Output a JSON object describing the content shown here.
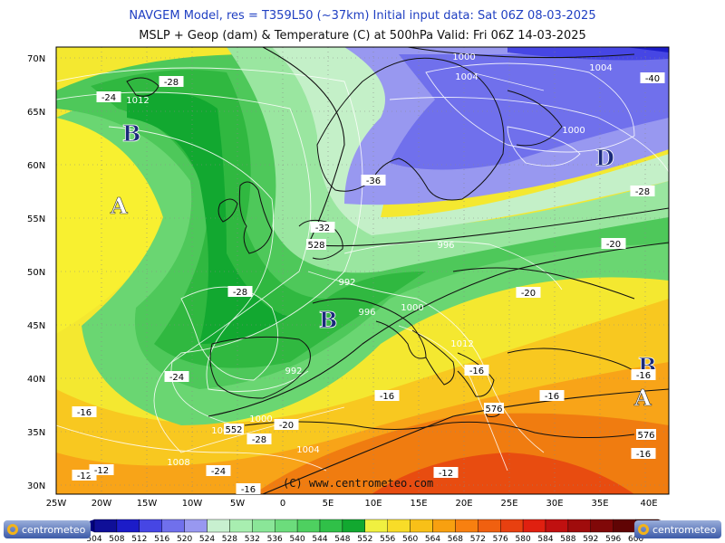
{
  "header": {
    "line1": "NAVGEM Model, res = T359L50 (~37km)    Initial input data: Sat 06Z 08-03-2025",
    "line2": "MSLP + Geop (dam) & Temperature (C) at 500hPa   Valid: Fri 06Z 14-03-2025"
  },
  "map": {
    "lat_labels": [
      "70N",
      "65N",
      "60N",
      "55N",
      "50N",
      "45N",
      "40N",
      "35N",
      "30N"
    ],
    "lon_labels": [
      "25W",
      "20W",
      "15W",
      "10W",
      "5W",
      "0",
      "5E",
      "10E",
      "15E",
      "20E",
      "25E",
      "30E",
      "35E",
      "40E"
    ],
    "pressure_systems": [
      {
        "letter": "B",
        "type": "low"
      },
      {
        "letter": "A",
        "type": "high"
      },
      {
        "letter": "D",
        "type": "low"
      },
      {
        "letter": "B",
        "type": "low"
      },
      {
        "letter": "B",
        "type": "low"
      },
      {
        "letter": "A",
        "type": "high"
      }
    ],
    "temperature_labels": [
      "-24",
      "-28",
      "-36",
      "-32",
      "-28",
      "-24",
      "-20",
      "-28",
      "-24",
      "-16",
      "-20",
      "-20",
      "-16",
      "-16",
      "-16",
      "-16",
      "-12",
      "-12",
      "-16",
      "-40",
      "-28",
      "-16",
      "-12"
    ],
    "pressure_labels": [
      "1000",
      "1004",
      "1012",
      "1004",
      "1000",
      "1008",
      "996",
      "992",
      "996",
      "1000",
      "1012",
      "992",
      "1000",
      "1004",
      "1008"
    ],
    "geopotential_labels": [
      "528",
      "552",
      "576",
      "576"
    ],
    "copyright": "(C)  www.centrometeo.com"
  },
  "colorbar": {
    "values": [
      "504",
      "508",
      "512",
      "516",
      "520",
      "524",
      "528",
      "532",
      "536",
      "540",
      "544",
      "548",
      "552",
      "556",
      "560",
      "564",
      "568",
      "572",
      "576",
      "580",
      "584",
      "588",
      "592",
      "596",
      "600"
    ],
    "colors": [
      "#0f0f98",
      "#1c1cc8",
      "#4646e4",
      "#7070ec",
      "#9898f0",
      "#c8f0d0",
      "#a8eeb0",
      "#8ae698",
      "#6cdc7c",
      "#4ed060",
      "#30c048",
      "#12a830",
      "#f0f040",
      "#f8dc28",
      "#f8c018",
      "#f8a010",
      "#f88010",
      "#f06010",
      "#e84010",
      "#e02010",
      "#c01010",
      "#a00c0c",
      "#800808",
      "#600404",
      "#400000"
    ],
    "logo_text": "centrometeo"
  }
}
